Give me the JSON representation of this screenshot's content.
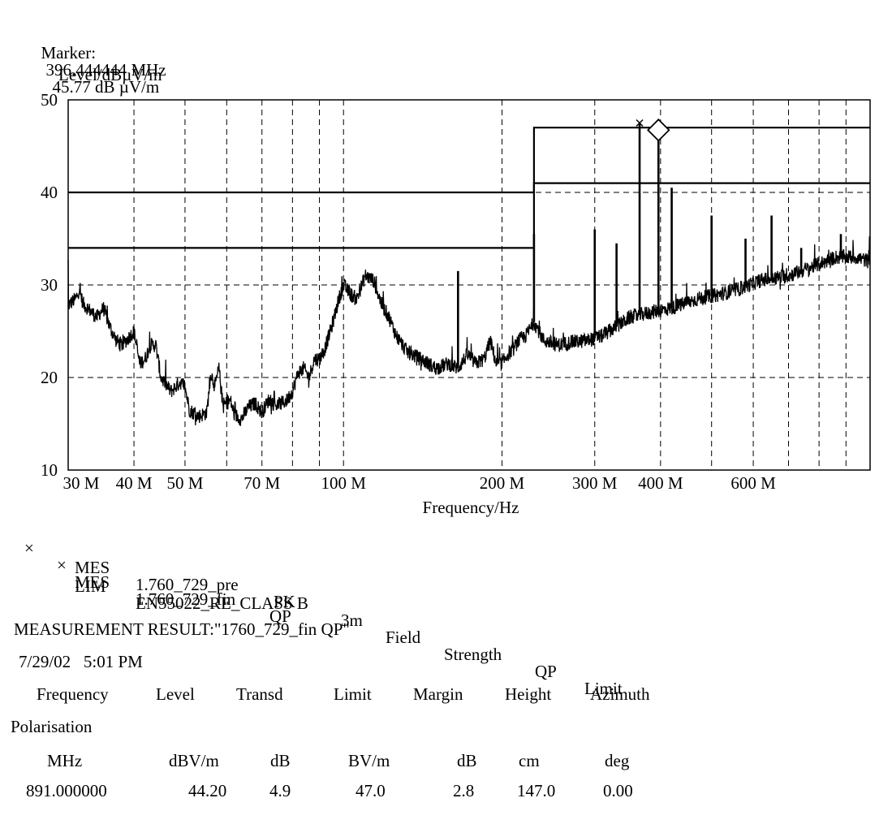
{
  "marker": {
    "label": "Marker:",
    "frequency": "396.444444 MHz",
    "level": "45.77 dB µV/m"
  },
  "chart_data": {
    "type": "line",
    "title": "",
    "xlabel": "Frequency/Hz",
    "ylabel": "Level/dBµV/m",
    "x_scale": "log",
    "xlim_mhz": [
      30,
      1000
    ],
    "ylim": [
      10,
      50
    ],
    "yticks": [
      10,
      20,
      30,
      40,
      50
    ],
    "yticks_labels": [
      "10",
      "20",
      "30",
      "40",
      "50"
    ],
    "xticks_mhz": [
      30,
      40,
      50,
      70,
      100,
      200,
      300,
      400,
      600
    ],
    "xticks_labels": [
      "30 M",
      "40 M",
      "50 M",
      "70 M",
      "100 M",
      "200 M",
      "300 M",
      "400 M",
      "600 M"
    ],
    "minor_grid_mhz": [
      60,
      80,
      90,
      500,
      700,
      800,
      900
    ],
    "grid": true,
    "limits": [
      {
        "name": "EN55022_RE_CLASS B 3m QP",
        "points_mhz": [
          [
            30,
            40
          ],
          [
            230,
            40
          ],
          [
            230,
            47
          ],
          [
            1000,
            47
          ]
        ]
      },
      {
        "name": "EN55022_RE_CLASS B 3m",
        "points_mhz": [
          [
            30,
            34
          ],
          [
            230,
            34
          ],
          [
            230,
            41
          ],
          [
            1000,
            41
          ]
        ]
      }
    ],
    "trace_shape_mhz_db": [
      [
        30,
        27.8
      ],
      [
        31,
        28.5
      ],
      [
        31.5,
        29.5
      ],
      [
        32,
        28
      ],
      [
        34,
        26.5
      ],
      [
        35,
        27.5
      ],
      [
        36,
        25.5
      ],
      [
        37,
        24
      ],
      [
        38,
        23.5
      ],
      [
        40,
        25
      ],
      [
        41,
        21.5
      ],
      [
        42,
        22
      ],
      [
        43,
        23.5
      ],
      [
        44,
        23.5
      ],
      [
        45,
        20
      ],
      [
        47,
        18.5
      ],
      [
        49,
        19.5
      ],
      [
        50,
        19
      ],
      [
        51,
        16.5
      ],
      [
        53,
        15.8
      ],
      [
        55,
        16.2
      ],
      [
        56,
        20.5
      ],
      [
        57,
        19
      ],
      [
        58,
        21
      ],
      [
        59,
        17
      ],
      [
        61,
        17.5
      ],
      [
        62,
        16
      ],
      [
        64,
        15.5
      ],
      [
        66,
        16.8
      ],
      [
        68,
        17.2
      ],
      [
        70,
        16.2
      ],
      [
        72,
        17.5
      ],
      [
        75,
        17
      ],
      [
        78,
        17.5
      ],
      [
        80,
        18.5
      ],
      [
        82,
        20.5
      ],
      [
        84,
        21
      ],
      [
        86,
        20
      ],
      [
        88,
        22
      ],
      [
        90,
        22
      ],
      [
        92,
        23
      ],
      [
        95,
        25.5
      ],
      [
        98,
        28.5
      ],
      [
        100,
        30
      ],
      [
        103,
        29
      ],
      [
        106,
        28.5
      ],
      [
        110,
        31
      ],
      [
        114,
        30.5
      ],
      [
        118,
        28
      ],
      [
        122,
        26.5
      ],
      [
        126,
        24.5
      ],
      [
        132,
        22.8
      ],
      [
        140,
        22
      ],
      [
        150,
        21
      ],
      [
        158,
        21.5
      ],
      [
        165,
        21
      ],
      [
        172,
        22.5
      ],
      [
        178,
        21.5
      ],
      [
        185,
        22
      ],
      [
        190,
        24
      ],
      [
        195,
        21.5
      ],
      [
        200,
        21.5
      ],
      [
        205,
        22.5
      ],
      [
        210,
        23
      ],
      [
        215,
        24
      ],
      [
        222,
        24.5
      ],
      [
        230,
        26
      ],
      [
        240,
        24
      ],
      [
        255,
        23.5
      ],
      [
        270,
        23.8
      ],
      [
        290,
        24
      ],
      [
        310,
        24.5
      ],
      [
        330,
        25.5
      ],
      [
        350,
        26.5
      ],
      [
        380,
        27
      ],
      [
        420,
        27.5
      ],
      [
        470,
        28.5
      ],
      [
        520,
        29
      ],
      [
        560,
        29.5
      ],
      [
        620,
        30.5
      ],
      [
        700,
        31
      ],
      [
        780,
        32
      ],
      [
        860,
        33
      ],
      [
        940,
        33
      ],
      [
        1000,
        32.5
      ]
    ],
    "spikes_mhz_db": [
      [
        165,
        31.5
      ],
      [
        230,
        35.5
      ],
      [
        300,
        36
      ],
      [
        330,
        34.5
      ],
      [
        365,
        47.5
      ],
      [
        396.4,
        45.77
      ],
      [
        420,
        40.5
      ],
      [
        500,
        37.5
      ],
      [
        580,
        35
      ],
      [
        650,
        37.5
      ],
      [
        740,
        34
      ],
      [
        880,
        35.5
      ]
    ],
    "qp_marks_mhz_db": [
      [
        365,
        47.5
      ]
    ],
    "marker_mhz_db": [
      396.444444,
      47
    ]
  },
  "legend": [
    {
      "symbol": "×",
      "symbol2": "×",
      "type": "MES",
      "name": "1.760_729_fin",
      "det": "QP"
    },
    {
      "type": "MES",
      "name": "1.760_729_pre",
      "det": "PK"
    },
    {
      "type": "LIM",
      "name": "EN55022_RE_CLASS B",
      "w1": "3m",
      "w2": "Field",
      "w3": "Strength",
      "w4": "QP",
      "w5": "Limit"
    }
  ],
  "result": {
    "title": "MEASUREMENT RESULT:\"1760_729_fin QP\"",
    "datetime": "7/29/02   5:01 PM",
    "headers": [
      "Frequency",
      "Level",
      "Transd",
      "Limit",
      "Margin",
      "Height",
      "Azimuth"
    ],
    "header_extra": "Polarisation",
    "units": [
      "MHz",
      "dBV/m",
      "dB",
      "BV/m",
      "dB",
      "cm",
      "deg"
    ],
    "rows": [
      [
        "891.000000",
        "44.20",
        "4.9",
        "47.0",
        "2.8",
        "147.0",
        "0.00"
      ]
    ]
  }
}
